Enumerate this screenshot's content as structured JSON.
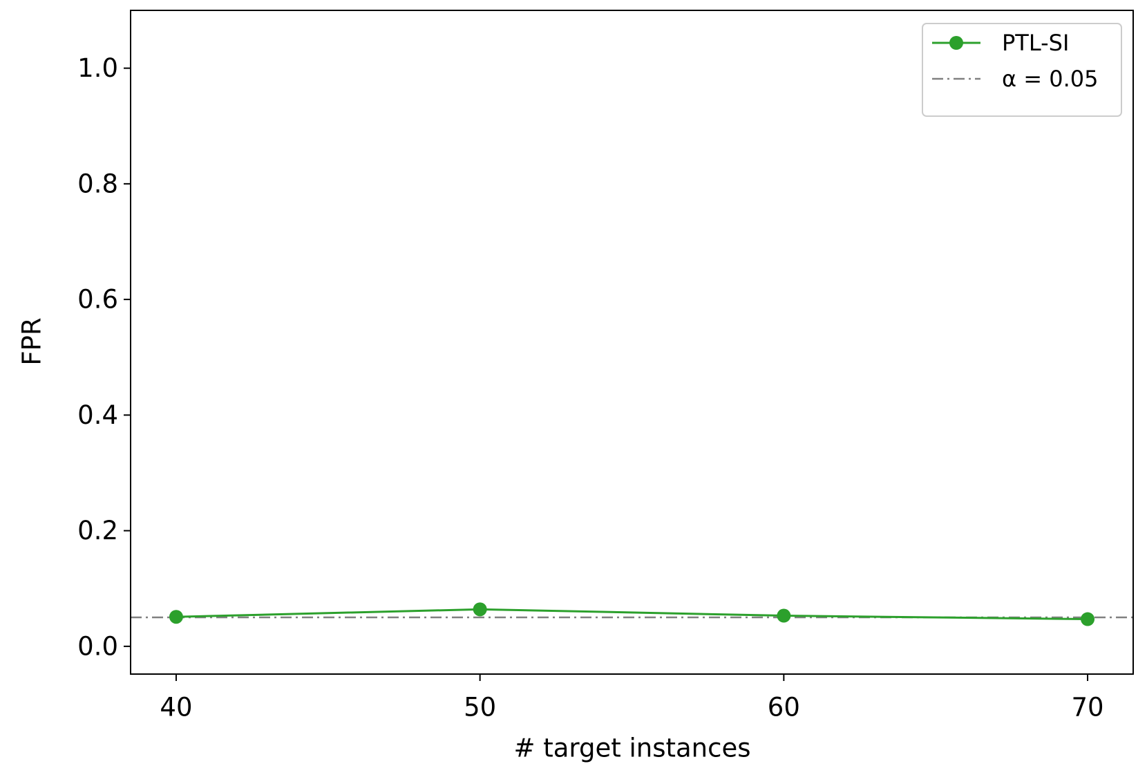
{
  "chart_data": {
    "type": "line",
    "xlabel": "# target instances",
    "ylabel": "FPR",
    "x": [
      40,
      50,
      60,
      70
    ],
    "series": [
      {
        "name": "PTL-SI",
        "color": "#2ca02c",
        "values": [
          0.051,
          0.064,
          0.053,
          0.047
        ]
      }
    ],
    "hlines": [
      {
        "name": "α = 0.05",
        "value": 0.05,
        "color": "#808080"
      }
    ],
    "xlim": [
      38.5,
      71.5
    ],
    "ylim": [
      -0.048,
      1.1
    ],
    "xticks": [
      40,
      50,
      60,
      70
    ],
    "yticks": [
      {
        "value": 0,
        "label": "0.0"
      },
      {
        "value": 0.2,
        "label": "0.2"
      },
      {
        "value": 0.4,
        "label": "0.4"
      },
      {
        "value": 0.6,
        "label": "0.6"
      },
      {
        "value": 0.8,
        "label": "0.8"
      },
      {
        "value": 1,
        "label": "1.0"
      }
    ],
    "legend": "upper right",
    "grid": false
  }
}
